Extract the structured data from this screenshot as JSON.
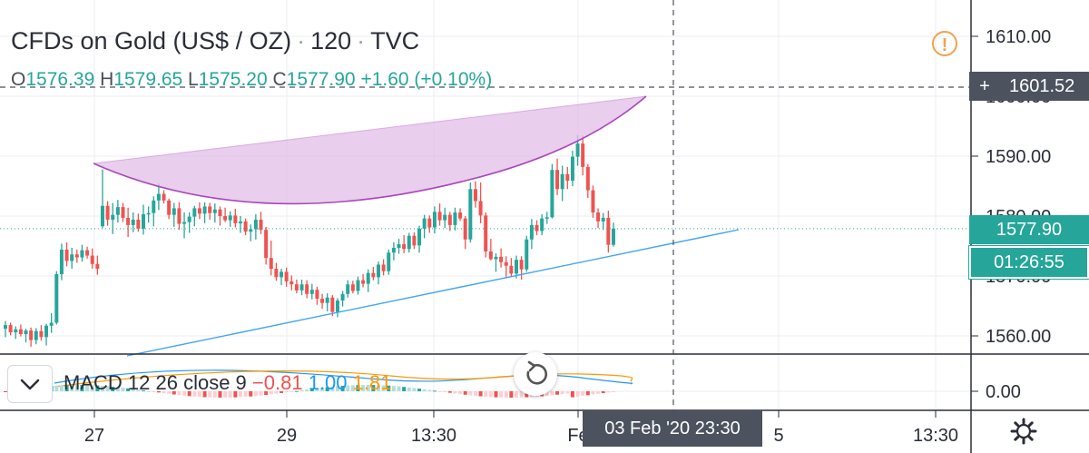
{
  "header": {
    "symbol": "CFDs on Gold (US$ / OZ)",
    "interval": "120",
    "source": "TVC",
    "sep": "·"
  },
  "ohlc": {
    "o_key": "O",
    "o": "1576.39",
    "h_key": "H",
    "h": "1579.65",
    "l_key": "L",
    "l": "1575.20",
    "c_key": "C",
    "c": "1577.90",
    "change": "+1.60 (+0.10%)"
  },
  "warning_icon": "!",
  "macd": {
    "label": "MACD",
    "params": "12 26 close 9",
    "hist": "−0.81",
    "macd": "1.00",
    "signal": "1.81"
  },
  "crosshair": {
    "price_label": "1601.52",
    "time_label": "03 Feb '20   23:30",
    "plus": "+"
  },
  "labels": {
    "last_price": "1577.90",
    "countdown": "01:26:55"
  },
  "colors": {
    "up": "#26a69a",
    "down": "#ef5350",
    "pattern_fill": "#e1bee7",
    "pattern_line": "#ab47bc",
    "trendline": "#42a5f5",
    "last_price": "#26a69a",
    "crosshair": "#4c525e"
  },
  "chart_data": {
    "type": "candlestick",
    "title": "CFDs on Gold (US$ / OZ) · 120 · TVC",
    "price_axis": {
      "ticks": [
        "1610.00",
        "1600.00",
        "1590.00",
        "1580.00",
        "1570.00",
        "1560.00"
      ],
      "ylim": [
        1557.5,
        1614
      ]
    },
    "macd_axis": {
      "ticks": [
        "0.00"
      ]
    },
    "time_axis": {
      "ticks": [
        "27",
        "29",
        "13:30",
        "Fe",
        "5",
        "13:30"
      ]
    },
    "candles": [
      [
        1561.2,
        1562.5,
        1559.8,
        1561.8
      ],
      [
        1561.8,
        1562.2,
        1560.1,
        1560.6
      ],
      [
        1560.6,
        1561.6,
        1559.5,
        1561.1
      ],
      [
        1561.1,
        1561.9,
        1559.9,
        1560.3
      ],
      [
        1560.3,
        1561.2,
        1558.9,
        1560.9
      ],
      [
        1560.9,
        1561.4,
        1558.2,
        1559.3
      ],
      [
        1559.3,
        1561.3,
        1558.6,
        1560.8
      ],
      [
        1560.8,
        1561.8,
        1559.2,
        1559.8
      ],
      [
        1559.8,
        1562.0,
        1558.4,
        1561.7
      ],
      [
        1561.7,
        1563.8,
        1560.5,
        1562.2
      ],
      [
        1562.2,
        1570.8,
        1561.9,
        1570.3
      ],
      [
        1570.3,
        1575.4,
        1569.3,
        1574.4
      ],
      [
        1574.4,
        1575.6,
        1571.6,
        1572.5
      ],
      [
        1572.5,
        1574.7,
        1571.2,
        1573.6
      ],
      [
        1573.6,
        1574.4,
        1572.2,
        1573.1
      ],
      [
        1573.1,
        1575.2,
        1572.4,
        1574.3
      ],
      [
        1574.3,
        1574.9,
        1572.9,
        1573.4
      ],
      [
        1573.4,
        1574.6,
        1571.2,
        1572.0
      ],
      [
        1572.0,
        1573.4,
        1570.2,
        1571.2
      ],
      [
        1578.3,
        1587.8,
        1578.0,
        1581.7
      ],
      [
        1581.7,
        1582.5,
        1578.4,
        1579.4
      ],
      [
        1579.4,
        1582.2,
        1577.0,
        1580.2
      ],
      [
        1580.2,
        1582.7,
        1578.9,
        1581.5
      ],
      [
        1581.5,
        1582.2,
        1579.0,
        1579.7
      ],
      [
        1579.7,
        1581.4,
        1576.5,
        1578.5
      ],
      [
        1578.5,
        1580.6,
        1577.3,
        1579.4
      ],
      [
        1579.4,
        1580.4,
        1577.4,
        1577.9
      ],
      [
        1577.9,
        1581.9,
        1576.9,
        1580.3
      ],
      [
        1580.3,
        1581.6,
        1578.9,
        1580.5
      ],
      [
        1580.5,
        1583.3,
        1578.3,
        1582.6
      ],
      [
        1582.6,
        1585.4,
        1581.0,
        1583.7
      ],
      [
        1583.7,
        1584.3,
        1582.1,
        1582.6
      ],
      [
        1582.6,
        1582.9,
        1579.5,
        1580.2
      ],
      [
        1580.2,
        1582.2,
        1578.2,
        1581.3
      ],
      [
        1581.3,
        1582.3,
        1577.7,
        1578.7
      ],
      [
        1578.7,
        1580.6,
        1576.3,
        1579.0
      ],
      [
        1579.0,
        1580.6,
        1577.2,
        1579.9
      ],
      [
        1579.9,
        1581.7,
        1578.3,
        1581.3
      ],
      [
        1581.3,
        1582.3,
        1579.5,
        1580.4
      ],
      [
        1580.4,
        1582.3,
        1578.8,
        1581.6
      ],
      [
        1581.6,
        1582.2,
        1579.4,
        1580.5
      ],
      [
        1580.5,
        1582.1,
        1578.9,
        1581.1
      ],
      [
        1581.1,
        1581.6,
        1578.4,
        1580.0
      ],
      [
        1580.0,
        1581.4,
        1579.0,
        1579.3
      ],
      [
        1579.3,
        1580.8,
        1578.2,
        1580.1
      ],
      [
        1580.1,
        1581.2,
        1578.1,
        1578.8
      ],
      [
        1578.8,
        1580.0,
        1577.2,
        1579.1
      ],
      [
        1579.1,
        1579.6,
        1576.8,
        1577.4
      ],
      [
        1577.4,
        1578.6,
        1575.8,
        1577.8
      ],
      [
        1577.8,
        1580.3,
        1576.1,
        1579.4
      ],
      [
        1579.4,
        1580.7,
        1577.0,
        1577.7
      ],
      [
        1577.7,
        1578.2,
        1571.9,
        1573.0
      ],
      [
        1573.0,
        1575.9,
        1570.1,
        1571.2
      ],
      [
        1571.2,
        1572.2,
        1569.2,
        1569.8
      ],
      [
        1569.8,
        1571.2,
        1568.5,
        1570.7
      ],
      [
        1570.7,
        1571.4,
        1568.2,
        1569.1
      ],
      [
        1569.1,
        1570.1,
        1567.6,
        1568.6
      ],
      [
        1568.6,
        1569.4,
        1567.1,
        1567.6
      ],
      [
        1567.6,
        1569.4,
        1566.8,
        1568.6
      ],
      [
        1568.6,
        1569.3,
        1566.3,
        1567.0
      ],
      [
        1567.0,
        1568.7,
        1566.1,
        1567.7
      ],
      [
        1567.7,
        1568.2,
        1565.2,
        1566.2
      ],
      [
        1566.2,
        1567.0,
        1564.5,
        1565.5
      ],
      [
        1565.5,
        1567.1,
        1564.1,
        1566.4
      ],
      [
        1566.4,
        1566.8,
        1563.3,
        1564.0
      ],
      [
        1564.0,
        1566.3,
        1563.1,
        1565.9
      ],
      [
        1565.9,
        1567.5,
        1564.9,
        1567.0
      ],
      [
        1567.0,
        1569.3,
        1566.4,
        1568.6
      ],
      [
        1568.6,
        1569.2,
        1567.1,
        1567.5
      ],
      [
        1567.5,
        1569.9,
        1566.9,
        1569.3
      ],
      [
        1569.3,
        1570.3,
        1568.1,
        1568.7
      ],
      [
        1568.7,
        1571.1,
        1567.3,
        1570.5
      ],
      [
        1570.5,
        1571.5,
        1569.3,
        1569.8
      ],
      [
        1569.8,
        1572.4,
        1568.6,
        1571.9
      ],
      [
        1571.9,
        1572.8,
        1570.1,
        1570.8
      ],
      [
        1570.8,
        1574.4,
        1570.2,
        1573.9
      ],
      [
        1573.9,
        1575.6,
        1572.6,
        1574.7
      ],
      [
        1574.7,
        1576.2,
        1573.7,
        1575.3
      ],
      [
        1575.3,
        1576.8,
        1573.8,
        1574.5
      ],
      [
        1574.5,
        1577.2,
        1573.9,
        1576.7
      ],
      [
        1576.7,
        1577.3,
        1574.5,
        1575.1
      ],
      [
        1575.1,
        1578.4,
        1573.9,
        1577.9
      ],
      [
        1577.9,
        1580.2,
        1576.3,
        1579.6
      ],
      [
        1579.6,
        1580.1,
        1577.2,
        1578.1
      ],
      [
        1578.1,
        1581.6,
        1577.1,
        1580.7
      ],
      [
        1580.7,
        1582.1,
        1578.4,
        1579.3
      ],
      [
        1579.3,
        1581.4,
        1578.0,
        1580.2
      ],
      [
        1580.2,
        1580.7,
        1577.5,
        1578.5
      ],
      [
        1578.5,
        1581.4,
        1577.6,
        1580.6
      ],
      [
        1580.6,
        1581.3,
        1579.2,
        1579.6
      ],
      [
        1579.6,
        1580.0,
        1574.5,
        1576.1
      ],
      [
        1576.1,
        1585.6,
        1575.6,
        1584.5
      ],
      [
        1584.5,
        1585.8,
        1581.4,
        1582.5
      ],
      [
        1582.5,
        1585.6,
        1578.8,
        1580.1
      ],
      [
        1580.1,
        1580.6,
        1573.1,
        1574.1
      ],
      [
        1574.1,
        1576.2,
        1572.6,
        1572.8
      ],
      [
        1572.8,
        1573.8,
        1570.7,
        1573.2
      ],
      [
        1573.2,
        1574.6,
        1571.4,
        1572.3
      ],
      [
        1572.3,
        1573.3,
        1569.6,
        1571.7
      ],
      [
        1571.7,
        1573.0,
        1569.8,
        1570.4
      ],
      [
        1570.4,
        1573.4,
        1569.6,
        1572.7
      ],
      [
        1572.7,
        1573.3,
        1569.4,
        1571.1
      ],
      [
        1571.1,
        1576.7,
        1570.7,
        1576.1
      ],
      [
        1576.1,
        1579.5,
        1574.5,
        1578.5
      ],
      [
        1578.5,
        1579.3,
        1576.8,
        1577.5
      ],
      [
        1577.5,
        1580.3,
        1576.8,
        1579.6
      ],
      [
        1579.6,
        1580.7,
        1578.7,
        1579.8
      ],
      [
        1579.8,
        1588.7,
        1579.6,
        1587.7
      ],
      [
        1587.7,
        1589.6,
        1583.5,
        1584.5
      ],
      [
        1584.5,
        1588.4,
        1582.5,
        1587.0
      ],
      [
        1587.0,
        1588.2,
        1584.5,
        1585.9
      ],
      [
        1585.9,
        1590.9,
        1585.0,
        1589.9
      ],
      [
        1589.9,
        1593.5,
        1588.4,
        1592.1
      ],
      [
        1592.1,
        1593.4,
        1586.8,
        1588.2
      ],
      [
        1588.2,
        1588.7,
        1583.0,
        1584.3
      ],
      [
        1584.3,
        1585.1,
        1579.7,
        1580.6
      ],
      [
        1580.6,
        1581.3,
        1578.0,
        1579.1
      ],
      [
        1579.1,
        1580.5,
        1577.7,
        1579.7
      ],
      [
        1579.7,
        1580.9,
        1573.9,
        1575.2
      ],
      [
        1575.2,
        1578.9,
        1574.9,
        1577.9
      ]
    ],
    "trendline_support": {
      "from": {
        "x": "27",
        "y": 1554
      },
      "to": {
        "x": "Fe",
        "y": 1579.3
      }
    },
    "pattern": "rounded curve highlight",
    "crosshair_price": 1601.52,
    "last_price": 1577.9
  }
}
